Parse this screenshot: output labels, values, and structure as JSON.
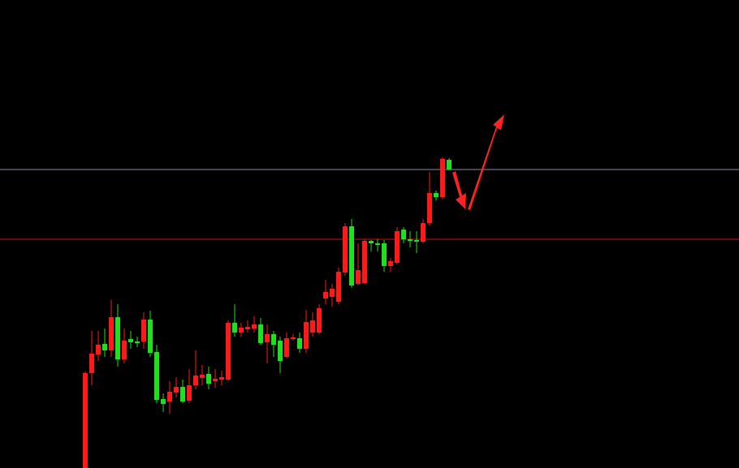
{
  "chart_data": {
    "type": "candlestick",
    "up_color": "#ff1a1a",
    "down_color": "#1fe01f",
    "ylim": [
      0,
      577
    ],
    "open": [
      0,
      117,
      140,
      153,
      145,
      186,
      134,
      159,
      156,
      156,
      183,
      143,
      85,
      82,
      93,
      100,
      83,
      102,
      111,
      116,
      107,
      109,
      109,
      179,
      167,
      171,
      172,
      177,
      155,
      165,
      157,
      137,
      159,
      160,
      147,
      167,
      167,
      209,
      211,
      205,
      241,
      298,
      227,
      228,
      280,
      277,
      277,
      249,
      253,
      294,
      282,
      281,
      279,
      302,
      339,
      334,
      380
    ],
    "high": [
      119,
      169,
      169,
      172,
      207,
      202,
      172,
      169,
      162,
      192,
      194,
      152,
      92,
      107,
      112,
      109,
      122,
      145,
      127,
      125,
      122,
      120,
      182,
      202,
      179,
      182,
      187,
      185,
      177,
      169,
      162,
      167,
      165,
      167,
      195,
      192,
      202,
      232,
      227,
      247,
      302,
      307,
      277,
      282,
      281,
      282,
      281,
      259,
      297,
      297,
      292,
      292,
      307,
      365,
      342,
      383,
      382
    ],
    "low": [
      0,
      102,
      132,
      137,
      137,
      125,
      129,
      147,
      149,
      147,
      137,
      80,
      69,
      67,
      87,
      80,
      80,
      97,
      102,
      97,
      99,
      102,
      107,
      162,
      162,
      167,
      167,
      152,
      129,
      137,
      117,
      135,
      157,
      142,
      142,
      162,
      165,
      202,
      199,
      202,
      237,
      222,
      225,
      227,
      267,
      267,
      242,
      242,
      251,
      277,
      272,
      265,
      277,
      299,
      330,
      332,
      367
    ],
    "close": [
      117,
      141,
      152,
      145,
      186,
      134,
      157,
      155,
      154,
      183,
      142,
      84,
      79,
      94,
      100,
      82,
      102,
      114,
      115,
      104,
      110,
      112,
      179,
      167,
      173,
      174,
      177,
      154,
      165,
      152,
      132,
      160,
      161,
      147,
      180,
      182,
      197,
      217,
      221,
      242,
      298,
      225,
      244,
      280,
      277,
      275,
      249,
      255,
      292,
      282,
      280,
      279,
      302,
      339,
      334,
      381,
      368
    ],
    "levels": [
      {
        "value": 368,
        "color": "#8c8ca8"
      },
      {
        "value": 282,
        "color": "#d01010"
      }
    ]
  }
}
